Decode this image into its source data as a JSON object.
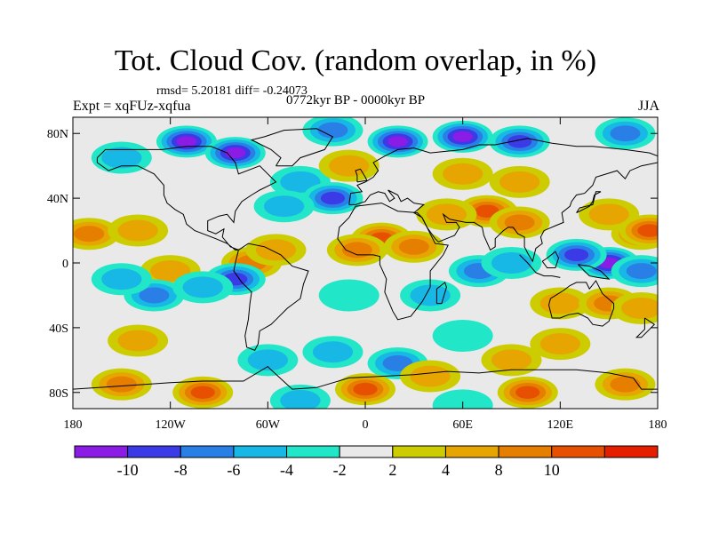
{
  "title": "Tot. Cloud Cov. (random overlap, in %)",
  "stats": "rmsd= 5.20181 diff= -0.24073",
  "experiment": "Expt = xqFUz-xqfua",
  "period": "0772kyr BP - 0000kyr BP",
  "season": "JJA",
  "lat_ticks": [
    {
      "label": "80N",
      "lat": 80
    },
    {
      "label": "40N",
      "lat": 40
    },
    {
      "label": "0",
      "lat": 0
    },
    {
      "label": "40S",
      "lat": -40
    },
    {
      "label": "80S",
      "lat": -80
    }
  ],
  "lon_ticks": [
    {
      "label": "180",
      "lon": -180
    },
    {
      "label": "120W",
      "lon": -120
    },
    {
      "label": "60W",
      "lon": -60
    },
    {
      "label": "0",
      "lon": 0
    },
    {
      "label": "60E",
      "lon": 60
    },
    {
      "label": "120E",
      "lon": 120
    },
    {
      "label": "180",
      "lon": 180
    }
  ],
  "colorbar": {
    "colors": [
      "#8a1ce6",
      "#3a3ae6",
      "#2a7fe6",
      "#18b8e6",
      "#22e6c8",
      "#e9e9e9",
      "#cccc00",
      "#e6a500",
      "#e67e00",
      "#e65000",
      "#e61e00"
    ],
    "labels": [
      "-10",
      "-8",
      "-6",
      "-4",
      "-2",
      "2",
      "4",
      "8",
      "10"
    ]
  },
  "chart_data": {
    "type": "heatmap",
    "title": "Tot. Cloud Cov. (random overlap, in %)",
    "lat_range": [
      -90,
      90
    ],
    "lon_range": [
      -180,
      180
    ],
    "levels": [
      -10,
      -8,
      -6,
      -4,
      -2,
      2,
      4,
      8,
      10
    ],
    "regions": [
      {
        "lon": -110,
        "lat": 75,
        "value": -12
      },
      {
        "lon": -80,
        "lat": 68,
        "value": -10
      },
      {
        "lon": 20,
        "lat": 75,
        "value": -12
      },
      {
        "lon": 60,
        "lat": 78,
        "value": -11
      },
      {
        "lon": 95,
        "lat": 75,
        "value": -8
      },
      {
        "lon": -20,
        "lat": 82,
        "value": -6
      },
      {
        "lon": -150,
        "lat": 65,
        "value": -5
      },
      {
        "lon": 160,
        "lat": 80,
        "value": -6
      },
      {
        "lon": 10,
        "lat": 15,
        "value": 11
      },
      {
        "lon": 30,
        "lat": 10,
        "value": 9
      },
      {
        "lon": -5,
        "lat": 8,
        "value": 8
      },
      {
        "lon": 75,
        "lat": 32,
        "value": 11
      },
      {
        "lon": 95,
        "lat": 25,
        "value": 9
      },
      {
        "lon": 50,
        "lat": 30,
        "value": 5
      },
      {
        "lon": -170,
        "lat": 18,
        "value": 9
      },
      {
        "lon": -140,
        "lat": 20,
        "value": 6
      },
      {
        "lon": -70,
        "lat": 0,
        "value": 8
      },
      {
        "lon": -55,
        "lat": 8,
        "value": 5
      },
      {
        "lon": -120,
        "lat": -5,
        "value": 6
      },
      {
        "lon": 150,
        "lat": 0,
        "value": -11
      },
      {
        "lon": 130,
        "lat": 5,
        "value": -8
      },
      {
        "lon": 170,
        "lat": -5,
        "value": -6
      },
      {
        "lon": 170,
        "lat": 18,
        "value": 8
      },
      {
        "lon": 150,
        "lat": 30,
        "value": 6
      },
      {
        "lon": 120,
        "lat": -25,
        "value": 5
      },
      {
        "lon": 150,
        "lat": -25,
        "value": 8
      },
      {
        "lon": 170,
        "lat": -28,
        "value": 6
      },
      {
        "lon": 175,
        "lat": 20,
        "value": 11
      },
      {
        "lon": -40,
        "lat": 50,
        "value": -5
      },
      {
        "lon": -20,
        "lat": 40,
        "value": -8
      },
      {
        "lon": -50,
        "lat": 35,
        "value": -4
      },
      {
        "lon": 60,
        "lat": 55,
        "value": 6
      },
      {
        "lon": 95,
        "lat": 50,
        "value": 4
      },
      {
        "lon": -10,
        "lat": 60,
        "value": 5
      },
      {
        "lon": -130,
        "lat": -20,
        "value": -6
      },
      {
        "lon": -150,
        "lat": -10,
        "value": -5
      },
      {
        "lon": -80,
        "lat": -10,
        "value": -8
      },
      {
        "lon": -100,
        "lat": -15,
        "value": -5
      },
      {
        "lon": 70,
        "lat": -5,
        "value": -6
      },
      {
        "lon": 90,
        "lat": 0,
        "value": -4
      },
      {
        "lon": 40,
        "lat": -20,
        "value": -5
      },
      {
        "lon": -10,
        "lat": -20,
        "value": -3
      },
      {
        "lon": -140,
        "lat": -48,
        "value": 4
      },
      {
        "lon": 120,
        "lat": -50,
        "value": 4
      },
      {
        "lon": 60,
        "lat": -45,
        "value": -3
      },
      {
        "lon": -60,
        "lat": -60,
        "value": -4
      },
      {
        "lon": 20,
        "lat": -62,
        "value": -6
      },
      {
        "lon": -20,
        "lat": -55,
        "value": -4
      },
      {
        "lon": 90,
        "lat": -60,
        "value": 4
      },
      {
        "lon": -100,
        "lat": -80,
        "value": 11
      },
      {
        "lon": 0,
        "lat": -78,
        "value": 10
      },
      {
        "lon": 100,
        "lat": -80,
        "value": 11
      },
      {
        "lon": 160,
        "lat": -75,
        "value": 9
      },
      {
        "lon": -150,
        "lat": -75,
        "value": 8
      },
      {
        "lon": 40,
        "lat": -70,
        "value": 6
      },
      {
        "lon": -40,
        "lat": -85,
        "value": -4
      },
      {
        "lon": 60,
        "lat": -88,
        "value": -3
      }
    ]
  }
}
